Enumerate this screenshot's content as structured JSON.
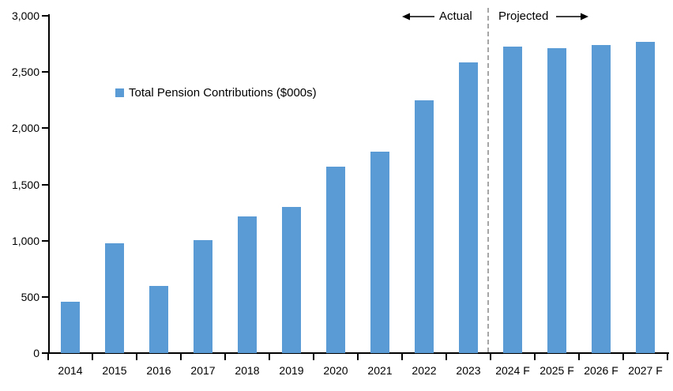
{
  "chart_data": {
    "type": "bar",
    "title": "",
    "legend": "Total Pension Contributions ($000s)",
    "categories": [
      "2014",
      "2015",
      "2016",
      "2017",
      "2018",
      "2019",
      "2020",
      "2021",
      "2022",
      "2023",
      "2024 F",
      "2025 F",
      "2026 F",
      "2027 F"
    ],
    "values": [
      455,
      980,
      600,
      1005,
      1215,
      1300,
      1660,
      1795,
      2250,
      2585,
      2725,
      2715,
      2740,
      2770
    ],
    "ylim": [
      0,
      3000
    ],
    "ytick_step": 500,
    "ytick_labels": [
      "0",
      "500",
      "1,000",
      "1,500",
      "2,000",
      "2,500",
      "3,000"
    ],
    "grid": false,
    "legend_position": "inside-upper-left",
    "bar_color": "#5B9BD5",
    "divider_after_index": 9,
    "annotations": {
      "actual": "Actual",
      "projected": "Projected"
    }
  }
}
